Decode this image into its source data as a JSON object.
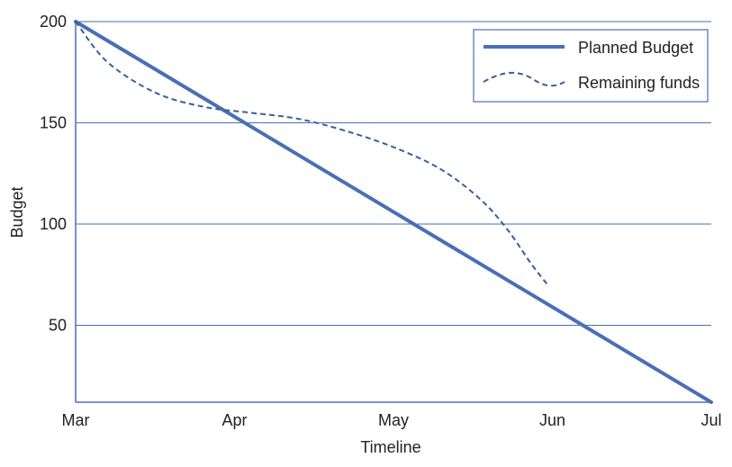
{
  "chart_data": {
    "type": "line",
    "title": "",
    "xlabel": "Timeline",
    "ylabel": "Budget",
    "x_categories": [
      "Mar",
      "Apr",
      "May",
      "Jun",
      "Jul"
    ],
    "y_ticks": [
      200,
      150,
      100,
      50
    ],
    "ylim": [
      12,
      200
    ],
    "grid": true,
    "legend_position": "top-right",
    "series": [
      {
        "name": "Planned Budget",
        "style": "solid",
        "color": "#4a6fb5",
        "points": [
          [
            0,
            200
          ],
          [
            4,
            12
          ]
        ]
      },
      {
        "name": "Remaining funds",
        "style": "dashed",
        "color": "#3b5e9a",
        "points": [
          [
            0,
            200
          ],
          [
            0.2,
            180
          ],
          [
            0.5,
            165
          ],
          [
            0.8,
            158
          ],
          [
            1.1,
            155
          ],
          [
            1.4,
            152
          ],
          [
            1.7,
            146
          ],
          [
            2.0,
            138
          ],
          [
            2.3,
            127
          ],
          [
            2.55,
            112
          ],
          [
            2.72,
            97
          ],
          [
            2.87,
            80
          ],
          [
            2.97,
            70
          ]
        ]
      }
    ]
  },
  "colors": {
    "grid": "#4a6fb5",
    "axis": "#4a6fb5",
    "planned": "#4a6fb5",
    "remaining": "#3b5e9a"
  }
}
